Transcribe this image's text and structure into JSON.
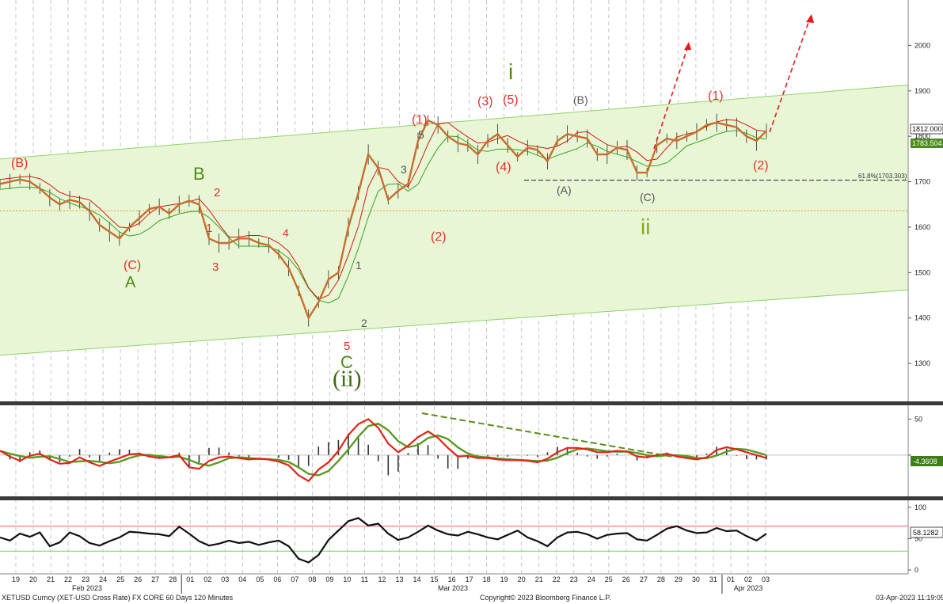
{
  "chart_data": {
    "type": "line",
    "instrument": "XETUSD Curncy (XET-USD Cross Rate) FX CORE 60 Days 120 Minutes",
    "copyright": "Copyright© 2023 Bloomberg Finance L.P.",
    "timestamp": "03-Apr-2023 11:19:05",
    "x_ticks": [
      "19",
      "20",
      "21",
      "22",
      "23",
      "24",
      "25",
      "26",
      "27",
      "28",
      "01",
      "02",
      "03",
      "04",
      "05",
      "06",
      "07",
      "08",
      "09",
      "10",
      "11",
      "12",
      "13",
      "14",
      "15",
      "16",
      "17",
      "18",
      "19",
      "20",
      "21",
      "22",
      "23",
      "24",
      "25",
      "26",
      "27",
      "28",
      "29",
      "30",
      "31",
      "01",
      "02",
      "03"
    ],
    "x_months": [
      "Feb 2023",
      "Mar 2023",
      "Apr 2023"
    ],
    "price_panel": {
      "ylim": [
        1220,
        2100
      ],
      "y_ticks": [
        1300,
        1400,
        1500,
        1600,
        1700,
        1800,
        1900,
        2000
      ],
      "last_price": "1812.000",
      "ma_value": "1783.504",
      "fib_label": "61.8%(1703.303)",
      "fib_level": 1703.303,
      "horizontal_level": 1636,
      "series": [
        {
          "values": [
            1695,
            1700,
            1705,
            1700,
            1685,
            1665,
            1650,
            1660,
            1655,
            1635,
            1605,
            1590,
            1575,
            1600,
            1620,
            1640,
            1645,
            1630,
            1650,
            1658,
            1650,
            1575,
            1565,
            1565,
            1575,
            1575,
            1565,
            1560,
            1540,
            1510,
            1460,
            1400,
            1435,
            1485,
            1500,
            1600,
            1675,
            1760,
            1730,
            1660,
            1680,
            1695,
            1790,
            1835,
            1825,
            1800,
            1785,
            1780,
            1760,
            1790,
            1805,
            1780,
            1755,
            1775,
            1770,
            1745,
            1790,
            1805,
            1800,
            1795,
            1760,
            1760,
            1775,
            1770,
            1720,
            1720,
            1780,
            1795,
            1790,
            1800,
            1810,
            1825,
            1830,
            1825,
            1820,
            1800,
            1790,
            1812
          ]
        }
      ],
      "channel": {
        "lower": [
          1318,
          1462
        ],
        "upper": [
          1750,
          1913
        ]
      },
      "labels": {
        "red": [
          "(B)",
          "(C)",
          "2",
          "1",
          "3",
          "4",
          "5",
          "(1)",
          "(2)",
          "(3)",
          "(5)",
          "(4)",
          "(1)",
          "(2)"
        ],
        "green": [
          "A",
          "B",
          "C",
          "(ii)",
          "i",
          "ii"
        ],
        "gray": [
          "1",
          "2",
          "3",
          "5",
          "(A)",
          "(B)",
          "(C)"
        ]
      }
    },
    "macd_panel": {
      "ylim": [
        -55,
        68
      ],
      "y_ticks": [
        50,
        0
      ],
      "last_value": "-4.3608",
      "series": [
        {
          "values": [
            6,
            -2,
            -8,
            -1,
            2,
            -6,
            -12,
            -11,
            -3,
            -10,
            -15,
            -9,
            -4,
            1,
            2,
            -2,
            -4,
            -3,
            0,
            -17,
            -19,
            -8,
            -3,
            -2,
            -4,
            -6,
            -5,
            -6,
            -9,
            -14,
            -28,
            -36,
            -20,
            -10,
            6,
            28,
            43,
            50,
            38,
            16,
            4,
            13,
            25,
            33,
            24,
            10,
            -2,
            -1,
            -4,
            -4,
            -6,
            -7,
            -7,
            -8,
            -10,
            -5,
            4,
            10,
            10,
            8,
            4,
            4,
            6,
            5,
            -2,
            -3,
            0,
            2,
            -2,
            -4,
            -6,
            -3,
            7,
            11,
            8,
            4,
            0,
            -4
          ]
        }
      ]
    },
    "rsi_panel": {
      "ylim": [
        -5,
        110
      ],
      "y_ticks": [
        100,
        50,
        0
      ],
      "upper_level": 70,
      "lower_level": 30,
      "last_value": "58.1282",
      "series": [
        {
          "values": [
            52,
            47,
            58,
            53,
            60,
            38,
            44,
            60,
            54,
            43,
            39,
            46,
            52,
            61,
            60,
            58,
            57,
            54,
            69,
            58,
            46,
            39,
            42,
            47,
            43,
            45,
            40,
            44,
            47,
            38,
            18,
            12,
            24,
            48,
            63,
            78,
            83,
            71,
            74,
            58,
            48,
            52,
            61,
            71,
            63,
            57,
            55,
            61,
            57,
            52,
            49,
            56,
            63,
            52,
            46,
            38,
            52,
            60,
            61,
            57,
            50,
            56,
            58,
            59,
            49,
            47,
            56,
            66,
            70,
            63,
            59,
            60,
            67,
            62,
            63,
            54,
            47,
            58
          ]
        }
      ]
    }
  },
  "colors": {
    "price": "#1a1a1a",
    "ma_fast": "#d11a0f",
    "ma_slow": "#33a321",
    "channel_fill": "#e8f6d6",
    "channel_line": "#8dd36a",
    "wave_red": "#e0312b",
    "wave_green": "#4f8a14",
    "wave_gray": "#555555",
    "dashed_arrow": "#e8191b",
    "macd_divergence": "#5c8c1a",
    "rsi_upper": "#ff5a5a",
    "rsi_lower": "#66dd55"
  }
}
